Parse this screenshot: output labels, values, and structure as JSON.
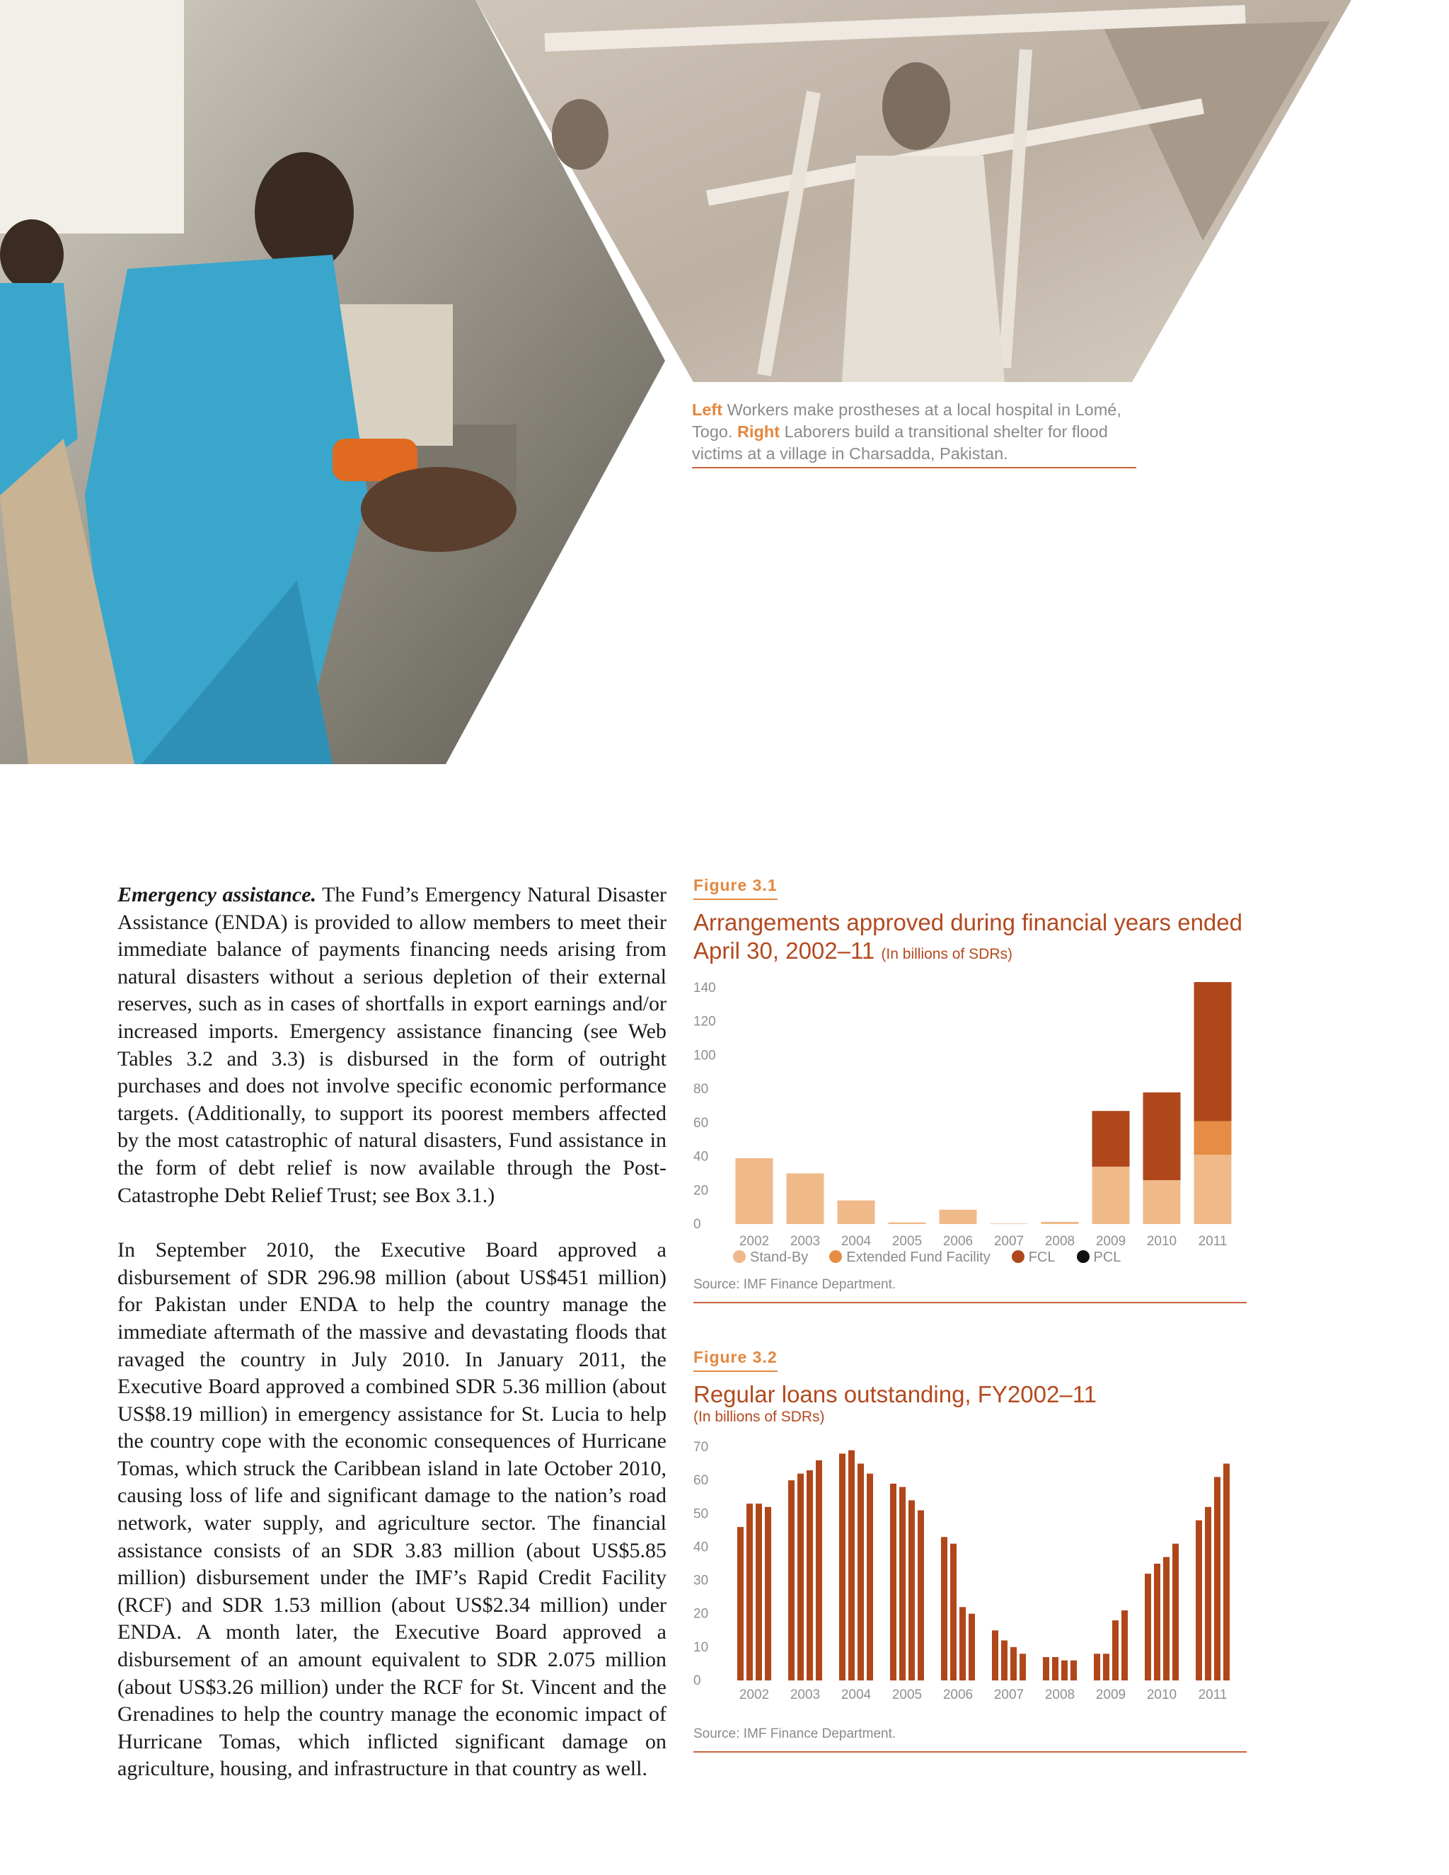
{
  "caption": {
    "left_label": "Left",
    "left_text": " Workers make prostheses at a local hospital in Lomé, Togo. ",
    "right_label": "Right",
    "right_text": " Laborers build a transitional shelter for flood victims at a village in Charsadda, Pakistan."
  },
  "body": {
    "p1_lead": "Emergency assistance.",
    "p1_text": " The Fund’s Emergency Natural Disaster Assistance (ENDA) is provided to allow members to meet their immediate balance of payments financing needs arising from natural disasters without a serious depletion of their external reserves, such as in cases of shortfalls in export earnings and/or increased imports. Emergency assistance financing (see Web Tables 3.2 and 3.3) is disbursed in the form of outright purchases and does not involve specific economic performance targets. (Additionally, to support its poorest members affected by the most catastrophic of natural disasters, Fund assistance in the form of debt relief is now available through the Post-Catastrophe Debt Relief Trust; see Box 3.1.)",
    "p2_text": "In September 2010, the Executive Board approved a disbursement of SDR 296.98 million (about US$451 million) for Pakistan under ENDA to help the country manage the immediate aftermath of the massive and devastating floods that ravaged the country in July 2010. In January 2011, the Executive Board approved a combined SDR 5.36 million (about US$8.19 million) in emergency assistance for St. Lucia to help the country cope with the economic consequences of Hurricane Tomas, which struck the Caribbean island in late October 2010, causing loss of life and significant damage to the nation’s road network, water supply, and agriculture sector. The financial assistance consists of an SDR 3.83 million (about US$5.85 million) disbursement under the IMF’s Rapid Credit Facility (RCF) and SDR 1.53 million (about US$2.34 million) under ENDA. A month later, the Executive Board approved a disbursement of an amount equivalent to SDR 2.075 million (about US$3.26 million) under the RCF for St. Vincent and the Grenadines to help the country manage the economic impact of Hurricane Tomas, which inflicted significant damage on agriculture, housing, and infrastructure in that country as well."
  },
  "chart_data": [
    {
      "type": "bar",
      "stacked": true,
      "label": "Figure 3.1",
      "title": "Arrangements approved during financial years ended April 30, 2002–11",
      "subtitle": "(In billions of SDRs)",
      "categories": [
        "2002",
        "2003",
        "2004",
        "2005",
        "2006",
        "2007",
        "2008",
        "2009",
        "2010",
        "2011"
      ],
      "series": [
        {
          "name": "Stand-By",
          "color": "#f0b98a",
          "values": [
            39,
            30,
            14,
            1,
            8.5,
            0.3,
            1.3,
            34,
            26,
            41
          ]
        },
        {
          "name": "Extended Fund Facility",
          "color": "#e58d45",
          "values": [
            0,
            0,
            0,
            0,
            0,
            0,
            0,
            0,
            0,
            20
          ]
        },
        {
          "name": "FCL",
          "color": "#b0471b",
          "values": [
            0,
            0,
            0,
            0,
            0,
            0,
            0,
            33,
            52,
            87
          ]
        },
        {
          "name": "PCL",
          "color": "#111111",
          "values": [
            0,
            0,
            0,
            0,
            0,
            0,
            0,
            0,
            0,
            1
          ]
        }
      ],
      "yticks": [
        0,
        20,
        40,
        60,
        80,
        100,
        120,
        140
      ],
      "ylim": [
        0,
        140
      ],
      "legend": "bottom",
      "source": "Source: IMF Finance Department."
    },
    {
      "type": "bar",
      "label": "Figure 3.2",
      "title": "Regular loans outstanding, FY2002–11",
      "subtitle": "(In billions of SDRs)",
      "categories": [
        "2002",
        "2003",
        "2004",
        "2005",
        "2006",
        "2007",
        "2008",
        "2009",
        "2010",
        "2011"
      ],
      "values_per_year": [
        [
          46,
          53,
          53,
          52
        ],
        [
          60,
          62,
          63,
          66
        ],
        [
          68,
          69,
          65,
          62
        ],
        [
          59,
          58,
          54,
          51
        ],
        [
          43,
          41,
          22,
          20
        ],
        [
          15,
          12,
          10,
          8
        ],
        [
          7,
          7,
          6,
          6
        ],
        [
          8,
          8,
          18,
          21
        ],
        [
          32,
          35,
          37,
          41
        ],
        [
          48,
          52,
          61,
          65
        ]
      ],
      "color": "#b0471b",
      "yticks": [
        0,
        10,
        20,
        30,
        40,
        50,
        60,
        70
      ],
      "ylim": [
        0,
        70
      ],
      "source": "Source: IMF Finance Department."
    }
  ]
}
